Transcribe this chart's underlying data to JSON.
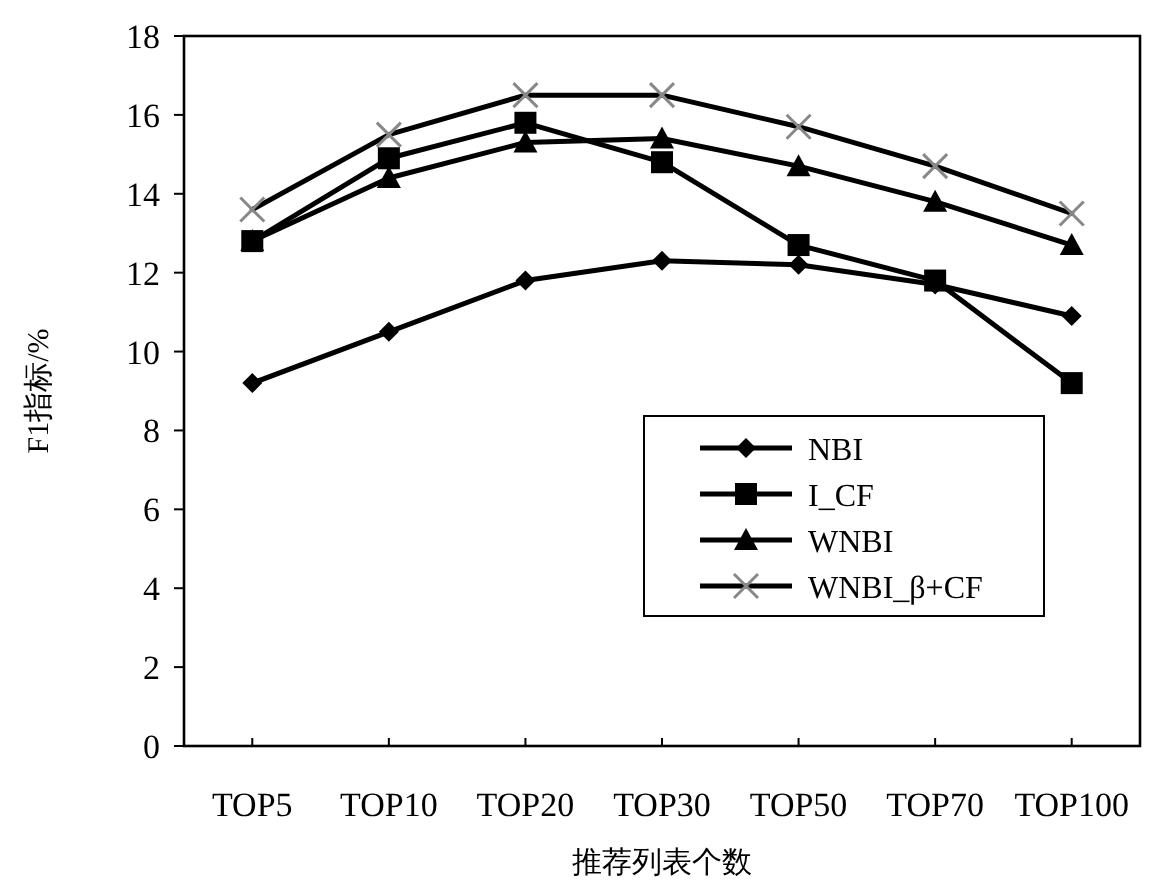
{
  "chart_data": {
    "type": "line",
    "xlabel": "推荐列表个数",
    "ylabel": "F1指标/%",
    "categories": [
      "TOP5",
      "TOP10",
      "TOP20",
      "TOP30",
      "TOP50",
      "TOP70",
      "TOP100"
    ],
    "ylim": [
      0,
      18
    ],
    "yticks": [
      0,
      2,
      4,
      6,
      8,
      10,
      12,
      14,
      16,
      18
    ],
    "grid": false,
    "legend": "right",
    "series": [
      {
        "name": "NBI",
        "color": "#000000",
        "marker": "diamond",
        "values": [
          9.2,
          10.5,
          11.8,
          12.3,
          12.2,
          11.7,
          10.9
        ]
      },
      {
        "name": "I_CF",
        "color": "#000000",
        "marker": "square",
        "values": [
          12.8,
          14.9,
          15.8,
          14.8,
          12.7,
          11.8,
          9.2
        ]
      },
      {
        "name": "WNBI",
        "color": "#000000",
        "marker": "triangle",
        "values": [
          12.8,
          14.4,
          15.3,
          15.4,
          14.7,
          13.8,
          12.7
        ]
      },
      {
        "name": "WNBI_β+CF",
        "color": "#000000",
        "marker": "cross",
        "values": [
          13.6,
          15.5,
          16.5,
          16.5,
          15.7,
          14.7,
          13.5
        ]
      }
    ]
  }
}
